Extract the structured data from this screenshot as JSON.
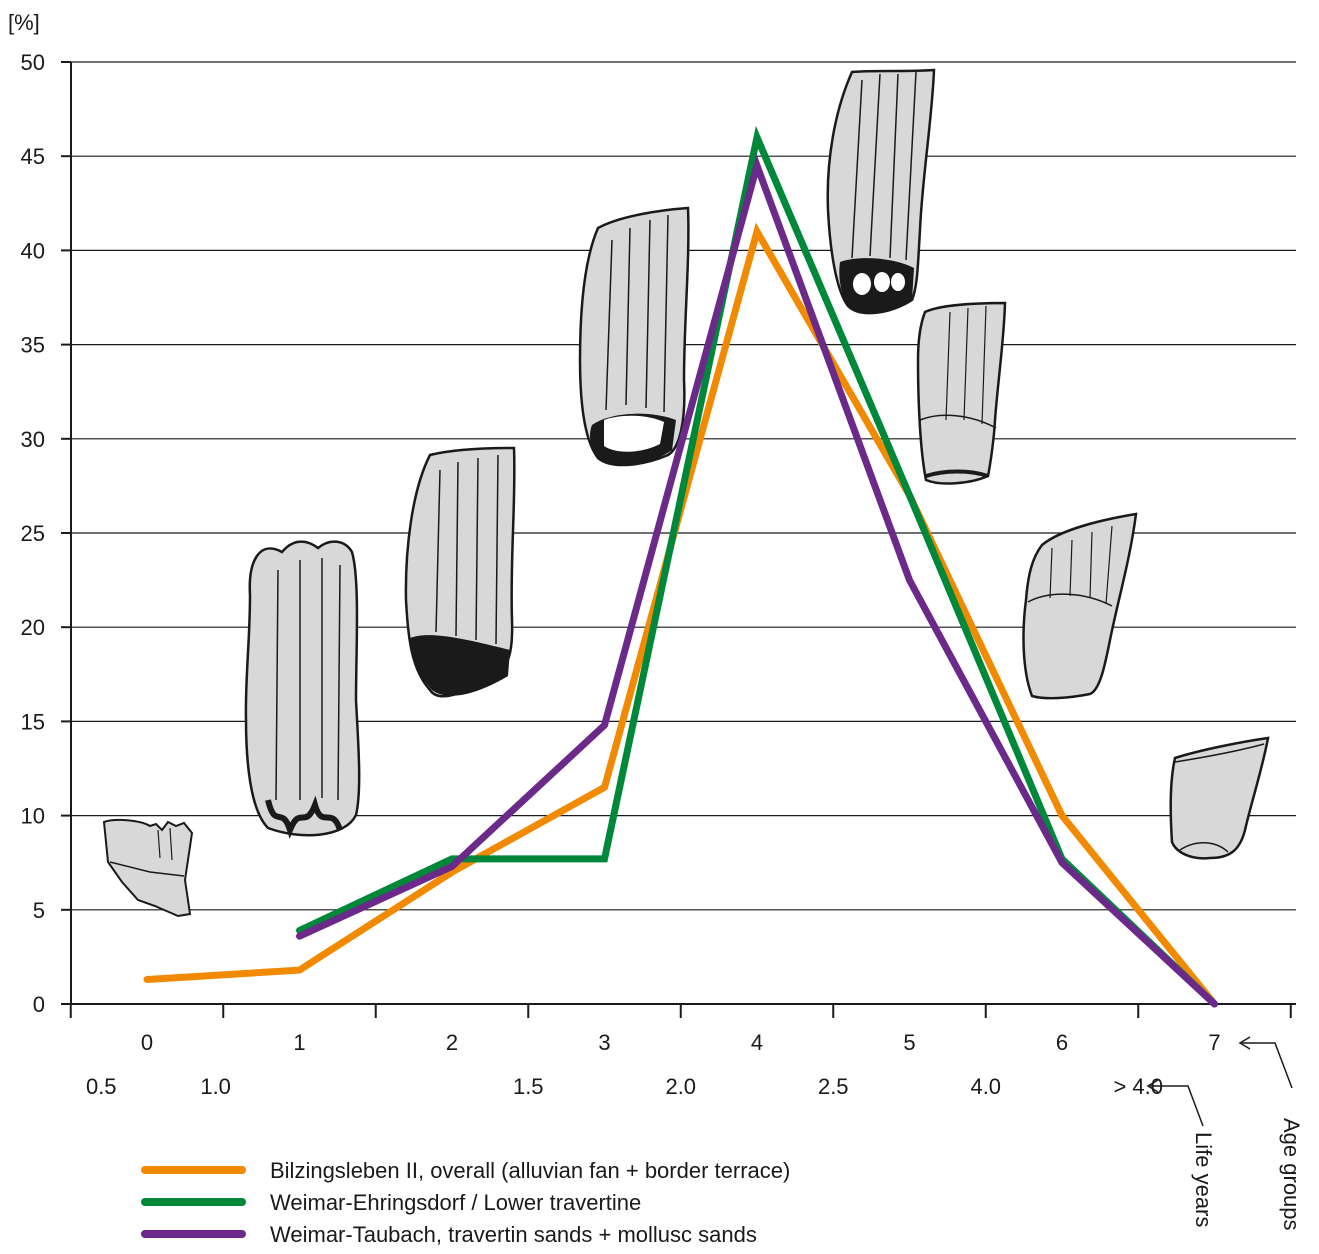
{
  "chart_data": {
    "type": "line",
    "title": "",
    "ylabel": "[%]",
    "ylim": [
      0,
      50
    ],
    "yticks": [
      0,
      5,
      10,
      15,
      20,
      25,
      30,
      35,
      40,
      45,
      50
    ],
    "xlim": [
      -0.5,
      7.5
    ],
    "grid": "horizontal",
    "age_groups": {
      "label": "Age groups",
      "ticks": [
        "0",
        "1",
        "2",
        "3",
        "4",
        "5",
        "6",
        "7"
      ],
      "positions": [
        0,
        1,
        2,
        3,
        4,
        5,
        6,
        7
      ]
    },
    "life_years": {
      "label": "Life years",
      "ticks": [
        "0.5",
        "1.0",
        "1.5",
        "2.0",
        "2.5",
        "4.0",
        "> 4.0"
      ],
      "positions": [
        -0.3,
        0.45,
        2.5,
        3.5,
        4.5,
        5.5,
        6.5
      ]
    },
    "series": [
      {
        "name": "Bilzingsleben II, overall (alluvian fan + border terrace)",
        "color": "#F18A00",
        "x": [
          0,
          1,
          2,
          3,
          4,
          5,
          6,
          7
        ],
        "values": [
          1.3,
          1.8,
          7.0,
          11.5,
          41.0,
          27.0,
          10.0,
          0.0
        ]
      },
      {
        "name": "Weimar-Ehringsdorf / Lower travertine",
        "color": "#00883A",
        "x": [
          1,
          2,
          3,
          4,
          5,
          6,
          7
        ],
        "values": [
          3.9,
          7.7,
          7.7,
          46.0,
          27.0,
          7.7,
          0.0
        ]
      },
      {
        "name": "Weimar-Taubach, travertin sands + mollusc sands",
        "color": "#6B2A8A",
        "x": [
          1,
          2,
          3,
          4,
          5,
          6,
          7
        ],
        "values": [
          3.6,
          7.3,
          14.8,
          44.5,
          22.5,
          7.5,
          0.0
        ]
      }
    ],
    "legend": "bottom-left"
  },
  "colors": {
    "tooth_fill": "#D8D8D8",
    "tooth_stroke": "#1a1a1a",
    "axis": "#1a1a1a"
  }
}
